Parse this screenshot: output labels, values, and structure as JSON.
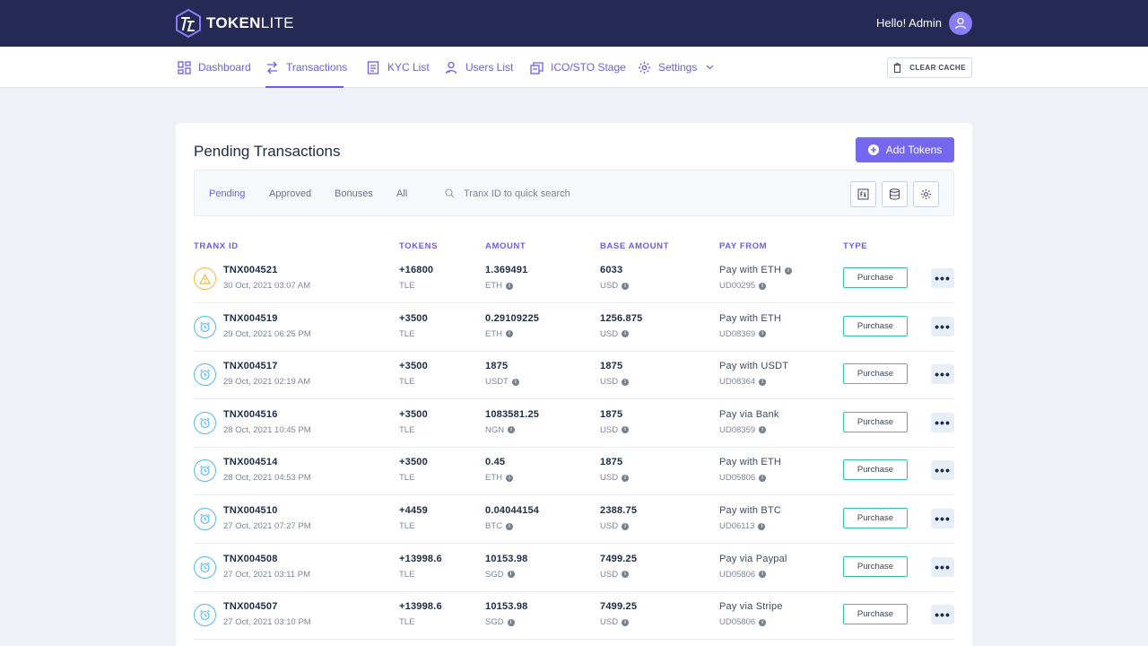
{
  "brand": {
    "name_bold": "TOKEN",
    "name_light": "LITE"
  },
  "header": {
    "greeting": "Hello! Admin"
  },
  "nav": {
    "items": [
      {
        "label": "Dashboard",
        "icon": "dashboard-grid-icon"
      },
      {
        "label": "Transactions",
        "icon": "arrows-exchange-icon",
        "active": true
      },
      {
        "label": "KYC List",
        "icon": "document-list-icon"
      },
      {
        "label": "Users List",
        "icon": "users-icon"
      },
      {
        "label": "ICO/STO Stage",
        "icon": "coins-stack-icon"
      },
      {
        "label": "Settings",
        "icon": "gear-icon"
      }
    ],
    "clear_cache": "CLEAR CACHE"
  },
  "page": {
    "title": "Pending Transactions",
    "add_button": "Add Tokens"
  },
  "filters": {
    "tabs": [
      "Pending",
      "Approved",
      "Bonuses",
      "All"
    ],
    "active_tab": "Pending",
    "search_placeholder": "Tranx ID to quick search"
  },
  "table": {
    "headers": [
      "TRANX ID",
      "TOKENS",
      "AMOUNT",
      "BASE AMOUNT",
      "PAY FROM",
      "TYPE"
    ],
    "rows": [
      {
        "status": "warning",
        "id": "TNX004521",
        "date": "30 Oct, 2021 03:07 AM",
        "tokens": "+16800",
        "token_unit": "TLE",
        "amount": "1.369491",
        "amount_unit": "ETH",
        "base": "6033",
        "base_unit": "USD",
        "pay": "Pay with ETH",
        "pay_info": true,
        "user": "UD00295",
        "type": "Purchase"
      },
      {
        "status": "pending",
        "id": "TNX004519",
        "date": "29 Oct, 2021 06:25 PM",
        "tokens": "+3500",
        "token_unit": "TLE",
        "amount": "0.29109225",
        "amount_unit": "ETH",
        "base": "1256.875",
        "base_unit": "USD",
        "pay": "Pay with ETH",
        "pay_info": false,
        "user": "UD08369",
        "type": "Purchase"
      },
      {
        "status": "pending",
        "id": "TNX004517",
        "date": "29 Oct, 2021 02:19 AM",
        "tokens": "+3500",
        "token_unit": "TLE",
        "amount": "1875",
        "amount_unit": "USDT",
        "base": "1875",
        "base_unit": "USD",
        "pay": "Pay with USDT",
        "pay_info": false,
        "user": "UD08364",
        "type": "Purchase"
      },
      {
        "status": "pending",
        "id": "TNX004516",
        "date": "28 Oct, 2021 10:45 PM",
        "tokens": "+3500",
        "token_unit": "TLE",
        "amount": "1083581.25",
        "amount_unit": "NGN",
        "base": "1875",
        "base_unit": "USD",
        "pay": "Pay via Bank",
        "pay_info": false,
        "user": "UD08359",
        "type": "Purchase"
      },
      {
        "status": "pending",
        "id": "TNX004514",
        "date": "28 Oct, 2021 04:53 PM",
        "tokens": "+3500",
        "token_unit": "TLE",
        "amount": "0.45",
        "amount_unit": "ETH",
        "base": "1875",
        "base_unit": "USD",
        "pay": "Pay with ETH",
        "pay_info": false,
        "user": "UD05806",
        "type": "Purchase"
      },
      {
        "status": "pending",
        "id": "TNX004510",
        "date": "27 Oct, 2021 07:27 PM",
        "tokens": "+4459",
        "token_unit": "TLE",
        "amount": "0.04044154",
        "amount_unit": "BTC",
        "base": "2388.75",
        "base_unit": "USD",
        "pay": "Pay with BTC",
        "pay_info": false,
        "user": "UD06113",
        "type": "Purchase"
      },
      {
        "status": "pending",
        "id": "TNX004508",
        "date": "27 Oct, 2021 03:11 PM",
        "tokens": "+13998.6",
        "token_unit": "TLE",
        "amount": "10153.98",
        "amount_unit": "SGD",
        "base": "7499.25",
        "base_unit": "USD",
        "pay": "Pay via Paypal",
        "pay_info": false,
        "user": "UD05806",
        "type": "Purchase"
      },
      {
        "status": "pending",
        "id": "TNX004507",
        "date": "27 Oct, 2021 03:10 PM",
        "tokens": "+13998.6",
        "token_unit": "TLE",
        "amount": "10153.98",
        "amount_unit": "SGD",
        "base": "7499.25",
        "base_unit": "USD",
        "pay": "Pay via Stripe",
        "pay_info": false,
        "user": "UD05806",
        "type": "Purchase"
      }
    ]
  },
  "colors": {
    "header_bg": "#252953",
    "accent": "#6a5fe3",
    "type_border": "#2ec4a4",
    "warning": "#f3b843",
    "pending": "#54b8e8"
  }
}
